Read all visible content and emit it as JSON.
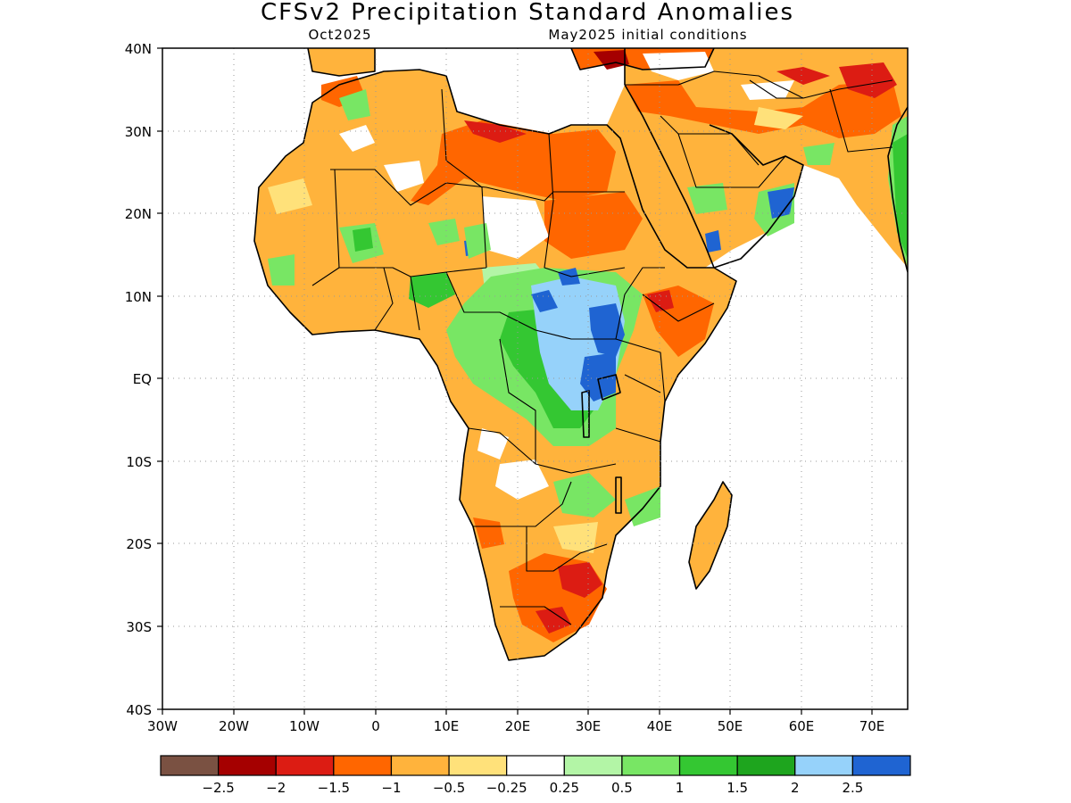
{
  "title": "CFSv2 Precipitation Standard Anomalies",
  "subtitle_left": "Oct2025",
  "subtitle_right": "May2025 initial conditions",
  "lon_ticks": [
    "30W",
    "20W",
    "10W",
    "0",
    "10E",
    "20E",
    "30E",
    "40E",
    "50E",
    "60E",
    "70E"
  ],
  "lat_ticks": [
    "40N",
    "30N",
    "20N",
    "10N",
    "EQ",
    "10S",
    "20S",
    "30S",
    "40S"
  ],
  "colorbar": {
    "colors": [
      "#7a5142",
      "#a50000",
      "#dc1c13",
      "#ff6600",
      "#ffb33c",
      "#ffe17a",
      "#ffffff",
      "#b3f5a6",
      "#78e664",
      "#34c732",
      "#1ea51e",
      "#96d2fa",
      "#1f64d2"
    ],
    "labels": [
      "−2.5",
      "−2",
      "−1.5",
      "−1",
      "−0.5",
      "−0.25",
      "0.25",
      "0.5",
      "1",
      "1.5",
      "2",
      "2.5"
    ]
  }
}
